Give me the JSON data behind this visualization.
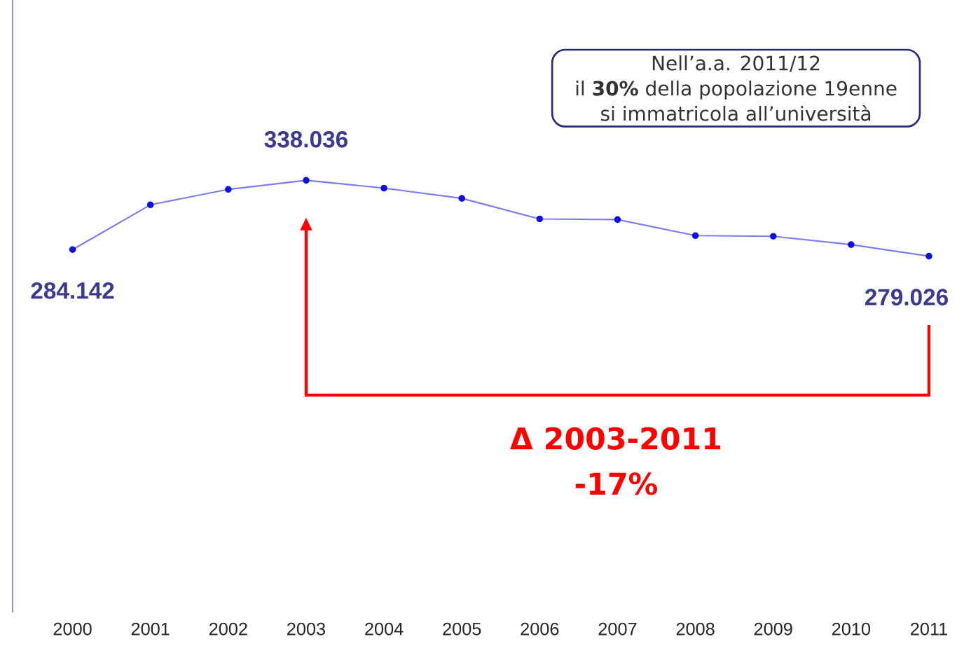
{
  "chart_data": {
    "type": "line",
    "categories": [
      "2000",
      "2001",
      "2002",
      "2003",
      "2004",
      "2005",
      "2006",
      "2007",
      "2008",
      "2009",
      "2010",
      "2011"
    ],
    "series": [
      {
        "color": "#1010e0",
        "values": [
          284142,
          319000,
          331000,
          338036,
          332000,
          324000,
          308000,
          307500,
          295000,
          294500,
          288000,
          279026
        ],
        "value_labels": [
          "284.142",
          null,
          null,
          "338.036",
          null,
          null,
          null,
          null,
          null,
          null,
          null,
          "279.026"
        ]
      }
    ],
    "tick_labels": "x",
    "marker": "circle",
    "grid": false,
    "annotations": [
      "Nell’a.a. 2011/12",
      "il **30%** della popolazione 19enne",
      "si immatricola all’università",
      "Δ 2003-2011",
      "-17%"
    ]
  }
}
